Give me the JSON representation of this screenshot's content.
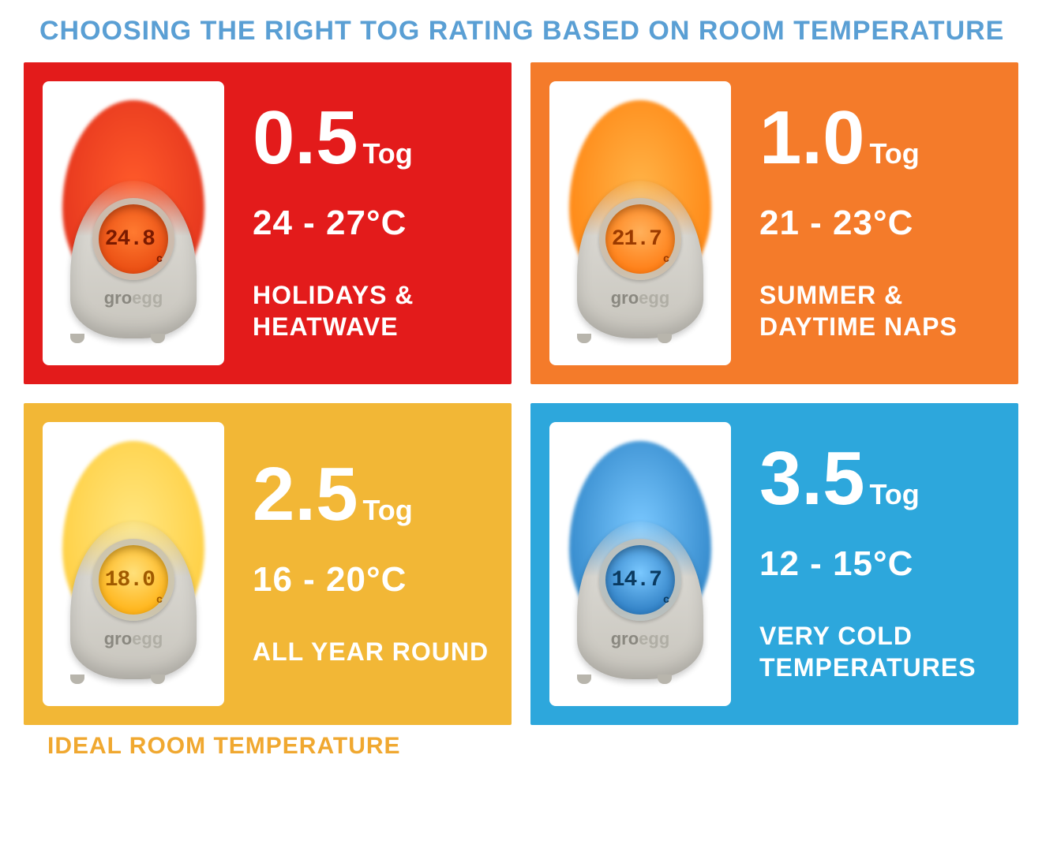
{
  "title": "CHOOSING THE RIGHT TOG RATING BASED ON ROOM TEMPERATURE",
  "title_color": "#5a9fd4",
  "footer": "IDEAL ROOM TEMPERATURE",
  "footer_color": "#f0a830",
  "tog_label": "Tog",
  "brand_prefix": "gro",
  "brand_suffix": "egg",
  "cards": [
    {
      "bg_color": "#e31b1b",
      "glow_color": "#e83a1f",
      "glow_gradient_inner": "#ff5a2a",
      "screen_bg": "radial-gradient(circle at 50% 40%, #ff7a30 0%, #e84a10 80%)",
      "screen_text_color": "#7a1a00",
      "display_temp": "24.8",
      "face": "sad",
      "tog_value": "0.5",
      "temp_range": "24 - 27°C",
      "description": "HOLIDAYS & HEATWAVE"
    },
    {
      "bg_color": "#f47b2a",
      "glow_color": "#ff8c1a",
      "glow_gradient_inner": "#ffb347",
      "screen_bg": "radial-gradient(circle at 50% 40%, #ffb05a 0%, #ff7a10 80%)",
      "screen_text_color": "#9a3a00",
      "display_temp": "21.7",
      "face": "neutral",
      "tog_value": "1.0",
      "temp_range": "21 - 23°C",
      "description": "SUMMER & DAYTIME NAPS"
    },
    {
      "bg_color": "#f2b736",
      "glow_color": "#ffd24a",
      "glow_gradient_inner": "#ffe680",
      "screen_bg": "radial-gradient(circle at 50% 40%, #ffe07a 0%, #ffb010 80%)",
      "screen_text_color": "#a05a00",
      "display_temp": "18.0",
      "face": "happy",
      "tog_value": "2.5",
      "temp_range": "16 - 20°C",
      "description": "ALL YEAR ROUND"
    },
    {
      "bg_color": "#2da7dc",
      "glow_color": "#3a8fd0",
      "glow_gradient_inner": "#7ac8ff",
      "screen_bg": "radial-gradient(circle at 50% 40%, #7ac8ff 0%, #2a7ac0 80%)",
      "screen_text_color": "#0a3a60",
      "display_temp": "14.7",
      "face": "sad",
      "tog_value": "3.5",
      "temp_range": "12 - 15°C",
      "description": "VERY COLD TEMPERATURES"
    }
  ]
}
